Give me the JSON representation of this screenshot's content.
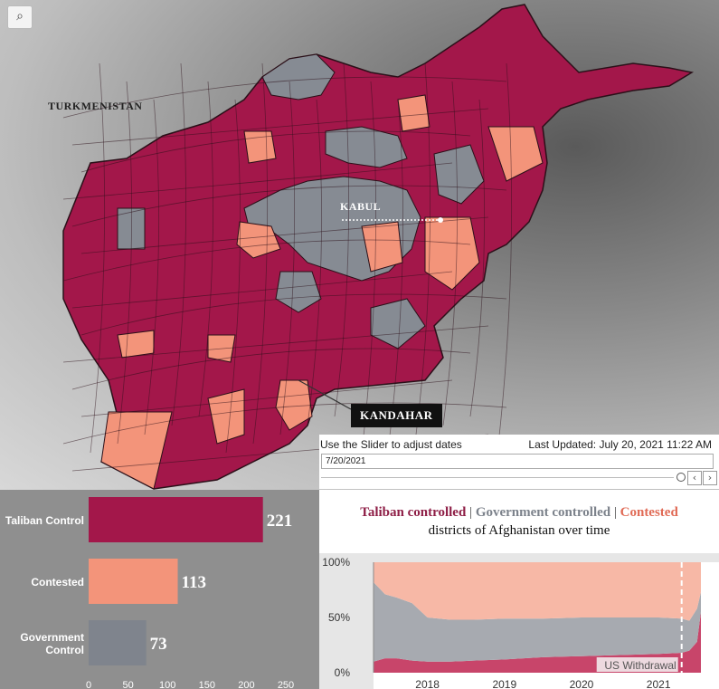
{
  "map": {
    "search_icon_glyph": "⌕",
    "labels": {
      "turkmenistan": "TURKMENISTAN",
      "kabul": "KABUL",
      "kandahar": "KANDAHAR"
    },
    "colors": {
      "taliban": "#a3174a",
      "contested": "#f3947a",
      "government": "#868b93",
      "border": "#2b1019"
    }
  },
  "slider": {
    "hint": "Use the Slider to adjust dates",
    "last_updated": "Last Updated: July 20, 2021 11:22 AM",
    "date_value": "7/20/2021",
    "prev_glyph": "‹",
    "next_glyph": "›"
  },
  "bar_chart": {
    "chart_data": {
      "type": "bar",
      "orientation": "horizontal",
      "categories": [
        "Taliban Control",
        "Contested",
        "Government Control"
      ],
      "values": [
        221,
        113,
        73
      ],
      "colors": [
        "#a3174a",
        "#f3947a",
        "#7f848d"
      ],
      "xlim": [
        0,
        250
      ],
      "xticks": [
        "0",
        "50",
        "100",
        "150",
        "200",
        "250"
      ]
    }
  },
  "line_chart": {
    "title_parts": {
      "taliban": "Taliban controlled",
      "separator": "|",
      "government": "Government controlled",
      "contested": "Contested"
    },
    "subtitle": "districts of Afghanistan over time",
    "annotation": "US Withdrawal",
    "chart_data": {
      "type": "area",
      "stacked": true,
      "normalized_percent": true,
      "x": [
        2017.3,
        2017.45,
        2017.6,
        2017.8,
        2018.0,
        2018.3,
        2018.6,
        2019.0,
        2019.5,
        2020.0,
        2020.5,
        2021.0,
        2021.3,
        2021.4,
        2021.5,
        2021.55
      ],
      "series": [
        {
          "name": "Taliban controlled",
          "color": "#c8456a",
          "values": [
            10,
            13,
            13,
            11,
            10,
            10,
            11,
            12,
            14,
            15,
            16,
            17,
            18,
            20,
            28,
            55
          ]
        },
        {
          "name": "Government controlled",
          "color": "#a7aab0",
          "values": [
            72,
            58,
            55,
            52,
            40,
            38,
            37,
            37,
            35,
            35,
            34,
            33,
            31,
            27,
            30,
            18
          ]
        },
        {
          "name": "Contested",
          "color": "#f7b8a6",
          "values": [
            18,
            29,
            32,
            37,
            50,
            52,
            52,
            51,
            51,
            50,
            50,
            50,
            51,
            53,
            42,
            27
          ]
        }
      ],
      "yticks": [
        "0%",
        "50%",
        "100%"
      ],
      "xticks": [
        "2018",
        "2019",
        "2020",
        "2021"
      ],
      "xlim": [
        2017.3,
        2021.55
      ],
      "ylim": [
        0,
        100
      ],
      "withdrawal_x": 2021.3
    }
  }
}
